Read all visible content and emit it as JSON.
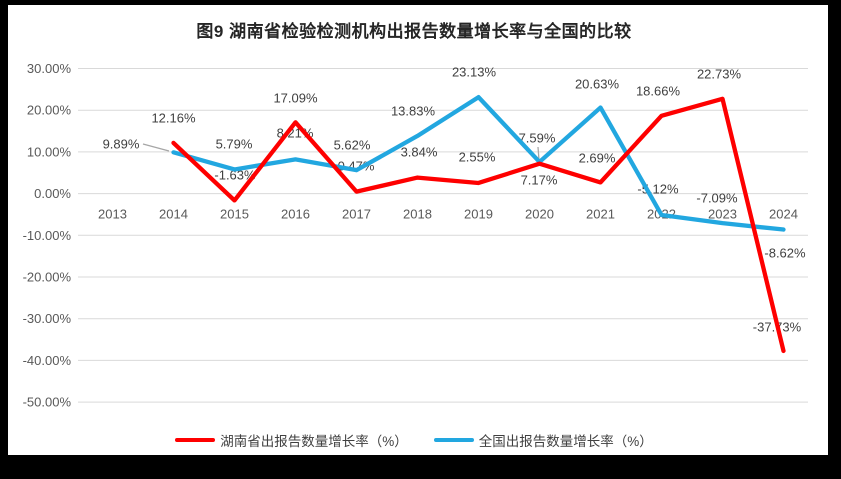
{
  "chart_data": {
    "type": "line",
    "title": "图9 湖南省检验检测机构出报告数量增长率与全国的比较",
    "x_categories": [
      "2013",
      "2014",
      "2015",
      "2016",
      "2017",
      "2018",
      "2019",
      "2020",
      "2021",
      "2022",
      "2023",
      "2024"
    ],
    "y_tick_labels": [
      "30.00%",
      "20.00%",
      "10.00%",
      "0.00%",
      "-10.00%",
      "-20.00%",
      "-30.00%",
      "-40.00%",
      "-50.00%"
    ],
    "ylim": [
      -50,
      30
    ],
    "grid": true,
    "legend_position": "bottom",
    "colors": {
      "hunan_red": "#fe0000",
      "national_blue": "#22a7e0",
      "leader_line": "#a6a6a6",
      "gridline": "#d9d9d9",
      "axis_text": "#595959",
      "label_text": "#404040",
      "title_text": "#262626"
    },
    "series": [
      {
        "name": "湖南省出报告数量增长率（%）",
        "color": "#fe0000",
        "years": [
          2014,
          2015,
          2016,
          2017,
          2018,
          2019,
          2020,
          2021,
          2022,
          2023,
          2024
        ],
        "values": [
          12.16,
          -1.63,
          17.09,
          0.47,
          3.84,
          2.55,
          7.17,
          2.69,
          18.66,
          22.73,
          -37.73
        ],
        "labels": [
          "12.16%",
          "-1.63%",
          "17.09%",
          "0.47%",
          "3.84%",
          "2.55%",
          "7.17%",
          "2.69%",
          "18.66%",
          "22.73%",
          "-37.73%"
        ]
      },
      {
        "name": "全国出报告数量增长率（%）",
        "color": "#22a7e0",
        "years": [
          2014,
          2015,
          2016,
          2017,
          2018,
          2019,
          2020,
          2021,
          2022,
          2023,
          2024
        ],
        "values": [
          9.89,
          5.79,
          8.21,
          5.62,
          13.83,
          23.13,
          7.59,
          20.63,
          -5.12,
          -7.09,
          -8.62
        ],
        "labels": [
          "9.89%",
          "5.79%",
          "8.21%",
          "5.62%",
          "13.83%",
          "23.13%",
          "7.59%",
          "20.63%",
          "-5.12%",
          "-7.09%",
          "-8.62%"
        ]
      }
    ]
  }
}
